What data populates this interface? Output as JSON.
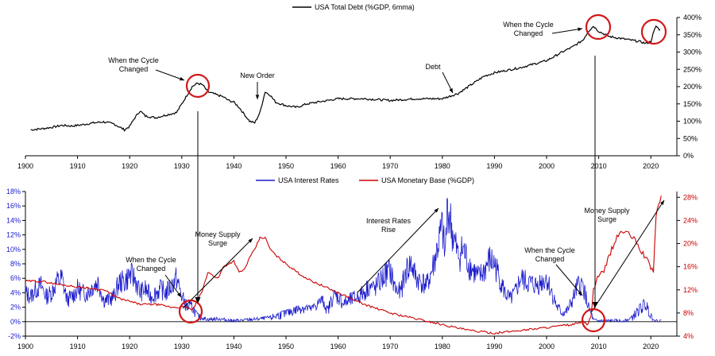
{
  "chart_data": [
    {
      "type": "line",
      "legend": [
        "USA Total Debt (%GDP, 6mma)"
      ],
      "legend_position": "top-center",
      "x_ticks": [
        1900,
        1910,
        1920,
        1930,
        1940,
        1950,
        1960,
        1970,
        1980,
        1990,
        2000,
        2010,
        2020
      ],
      "xlim": [
        1900,
        2025
      ],
      "ylim": [
        0,
        400
      ],
      "y_ticks": [
        "0%",
        "50%",
        "100%",
        "150%",
        "200%",
        "250%",
        "300%",
        "350%",
        "400%"
      ],
      "y_axis_side": "right",
      "series": [
        {
          "name": "USA Total Debt (%GDP, 6mma)",
          "color": "#000000",
          "x": [
            1901,
            1903,
            1905,
            1907,
            1909,
            1911,
            1913,
            1915,
            1917,
            1919,
            1920,
            1921,
            1922,
            1923,
            1925,
            1927,
            1929,
            1930,
            1931,
            1932,
            1933,
            1934,
            1935,
            1936,
            1937,
            1938,
            1939,
            1940,
            1941,
            1942,
            1943,
            1944,
            1945,
            1946,
            1947,
            1948,
            1950,
            1952,
            1954,
            1956,
            1958,
            1960,
            1965,
            1970,
            1975,
            1980,
            1981,
            1982,
            1983,
            1985,
            1988,
            1990,
            1995,
            2000,
            2003,
            2005,
            2007,
            2008,
            2009,
            2010,
            2012,
            2014,
            2016,
            2018,
            2019,
            2020,
            2020.5,
            2021,
            2022
          ],
          "y": [
            75,
            78,
            82,
            88,
            86,
            90,
            95,
            98,
            92,
            75,
            85,
            110,
            130,
            115,
            110,
            118,
            125,
            150,
            175,
            200,
            210,
            205,
            185,
            180,
            175,
            170,
            160,
            155,
            140,
            120,
            100,
            95,
            125,
            185,
            175,
            155,
            145,
            140,
            150,
            155,
            160,
            165,
            165,
            160,
            165,
            165,
            170,
            175,
            180,
            200,
            230,
            240,
            255,
            275,
            300,
            315,
            335,
            360,
            375,
            360,
            345,
            340,
            335,
            330,
            325,
            330,
            355,
            375,
            360
          ]
        }
      ],
      "annotations": [
        {
          "lines": [
            "When the Cycle",
            "Changed"
          ],
          "x": 1933
        },
        {
          "lines": [
            "New Order"
          ],
          "x": 1945
        },
        {
          "lines": [
            "Debt"
          ],
          "x": 1982
        },
        {
          "lines": [
            "When the Cycle",
            "Changed"
          ],
          "x": 2009
        }
      ]
    },
    {
      "type": "line",
      "legend": [
        "USA Interest Rates",
        "USA Monetary Base (%GDP)"
      ],
      "legend_position": "top-center",
      "x_ticks": [
        1900,
        1910,
        1920,
        1930,
        1940,
        1950,
        1960,
        1970,
        1980,
        1990,
        2000,
        2010,
        2020
      ],
      "xlim": [
        1900,
        2025
      ],
      "y_left": {
        "ylim": [
          -2,
          18
        ],
        "ticks": [
          "-2%",
          "0%",
          "2%",
          "4%",
          "6%",
          "8%",
          "10%",
          "12%",
          "14%",
          "16%",
          "18%"
        ],
        "color": "#1a1acc"
      },
      "y_right": {
        "ylim": [
          4,
          29
        ],
        "ticks": [
          "4%",
          "8%",
          "12%",
          "16%",
          "20%",
          "24%",
          "28%"
        ],
        "color": "#cc0000"
      },
      "series": [
        {
          "name": "USA Interest Rates",
          "axis": "left",
          "color": "#1a1acc",
          "x": [
            1900,
            1901,
            1902,
            1903,
            1904,
            1905,
            1906,
            1907,
            1908,
            1909,
            1910,
            1911,
            1912,
            1913,
            1914,
            1915,
            1916,
            1917,
            1918,
            1919,
            1920,
            1921,
            1922,
            1923,
            1924,
            1925,
            1926,
            1927,
            1928,
            1929,
            1930,
            1931,
            1932,
            1933,
            1934,
            1935,
            1937,
            1940,
            1945,
            1947,
            1950,
            1953,
            1955,
            1957,
            1958,
            1959,
            1960,
            1961,
            1962,
            1965,
            1966,
            1967,
            1968,
            1969,
            1970,
            1971,
            1972,
            1973,
            1974,
            1975,
            1976,
            1977,
            1978,
            1979,
            1980,
            1980.5,
            1981,
            1981.5,
            1982,
            1983,
            1984,
            1985,
            1986,
            1987,
            1988,
            1989,
            1990,
            1991,
            1992,
            1993,
            1994,
            1995,
            1996,
            1998,
            2000,
            2001,
            2002,
            2003,
            2004,
            2005,
            2006,
            2007,
            2008,
            2009,
            2010,
            2012,
            2015,
            2016,
            2017,
            2018,
            2019,
            2020,
            2021,
            2022
          ],
          "y": [
            4,
            3.5,
            4.5,
            5,
            3.5,
            4,
            5.5,
            6,
            3,
            3.5,
            4.5,
            4,
            4,
            5,
            5.5,
            3,
            3,
            3.5,
            5.5,
            5.5,
            6.5,
            6,
            4,
            4.5,
            3.5,
            4,
            4.5,
            4,
            5,
            6,
            3.5,
            2,
            2,
            0.8,
            0.5,
            0.3,
            0.4,
            0.1,
            0.4,
            0.6,
            1.2,
            2,
            1.8,
            3.2,
            1.5,
            3.5,
            3.5,
            2.5,
            2.8,
            4,
            5,
            4.5,
            5.5,
            6.5,
            7,
            4.5,
            4,
            7,
            8,
            6,
            5.5,
            5,
            7,
            10,
            13,
            9,
            16,
            14,
            12,
            9,
            10,
            8,
            7,
            6,
            7,
            8.5,
            8,
            6,
            4,
            3,
            4,
            6,
            5.5,
            5,
            6,
            4,
            2,
            1.2,
            1.5,
            3,
            5,
            5,
            2,
            0.2,
            0.1,
            0.1,
            0.1,
            0.4,
            1,
            1.8,
            2.4,
            1,
            0.1,
            0.1
          ],
          "y_cap": 17.5
        },
        {
          "name": "USA Monetary Base (%GDP)",
          "axis": "right",
          "color": "#cc0000",
          "x": [
            1900,
            1903,
            1906,
            1910,
            1915,
            1918,
            1920,
            1922,
            1925,
            1928,
            1930,
            1931,
            1932,
            1933,
            1934,
            1935,
            1936,
            1937,
            1938,
            1939,
            1940,
            1941,
            1942,
            1943,
            1944,
            1945,
            1946,
            1947,
            1948,
            1950,
            1953,
            1955,
            1960,
            1965,
            1970,
            1975,
            1980,
            1985,
            1990,
            1995,
            2000,
            2005,
            2007,
            2008,
            2008.5,
            2009,
            2010,
            2011,
            2012,
            2013,
            2014,
            2015,
            2016,
            2017,
            2018,
            2019,
            2020,
            2020.5,
            2021,
            2022
          ],
          "y": [
            13.5,
            13.5,
            13,
            12.5,
            12,
            10.5,
            10,
            9.5,
            9.5,
            9,
            9,
            9,
            8.5,
            10,
            12,
            15,
            14.5,
            14,
            16,
            16.5,
            17,
            15,
            15.5,
            17.5,
            19,
            21,
            21,
            19,
            18,
            16.5,
            14.5,
            13.5,
            11.5,
            9.5,
            8,
            7,
            6,
            5,
            4.5,
            5,
            5.5,
            6,
            6.5,
            6,
            7.5,
            12,
            14.5,
            15,
            18,
            20,
            22,
            22,
            21.5,
            20.5,
            19,
            17.5,
            16,
            15,
            25,
            28
          ]
        }
      ],
      "annotations": [
        {
          "lines": [
            "When the Cycle",
            "Changed"
          ],
          "x": 1929
        },
        {
          "lines": [
            "Money Supply",
            "Surge"
          ],
          "x": 1937
        },
        {
          "lines": [
            "Interest Rates",
            "Rise"
          ],
          "x": 1971
        },
        {
          "lines": [
            "When the Cycle",
            "Changed"
          ],
          "x": 2006
        },
        {
          "lines": [
            "Money Supply",
            "Surge"
          ],
          "x": 2013
        }
      ]
    }
  ]
}
